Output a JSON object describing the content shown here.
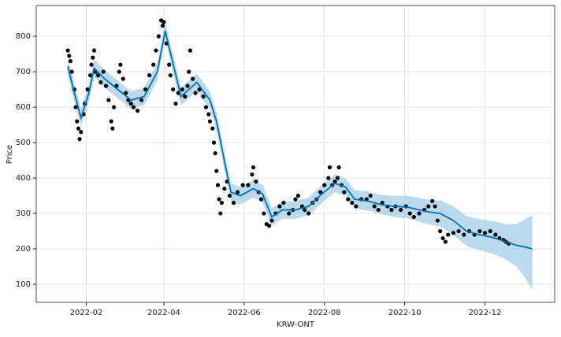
{
  "chart_data": {
    "type": "forecast",
    "xlabel": "KRW-ONT",
    "ylabel": "Price",
    "xlim": [
      -7,
      387
    ],
    "ylim": [
      49,
      887
    ],
    "xticks": [
      {
        "value": 31,
        "label": "2022-02"
      },
      {
        "value": 90,
        "label": "2022-04"
      },
      {
        "value": 151,
        "label": "2022-06"
      },
      {
        "value": 212,
        "label": "2022-08"
      },
      {
        "value": 273,
        "label": "2022-10"
      },
      {
        "value": 334,
        "label": "2022-12"
      }
    ],
    "yticks": [
      100,
      200,
      300,
      400,
      500,
      600,
      700,
      800
    ],
    "grid": true,
    "forecast": {
      "color": "#0072b2",
      "band_color": "#a6cde8",
      "x": [
        17,
        22,
        27,
        33,
        37,
        45,
        55,
        65,
        75,
        85,
        91,
        103,
        115,
        125,
        130,
        137,
        141,
        148,
        158,
        165,
        172,
        180,
        190,
        200,
        210,
        220,
        228,
        235,
        245,
        255,
        265,
        275,
        290,
        300,
        310,
        320,
        330,
        340,
        350,
        358,
        365,
        370
      ],
      "values": [
        715,
        640,
        570,
        640,
        710,
        680,
        650,
        620,
        630,
        700,
        815,
        630,
        670,
        620,
        560,
        430,
        360,
        350,
        370,
        355,
        290,
        310,
        310,
        320,
        355,
        385,
        375,
        340,
        335,
        325,
        320,
        318,
        305,
        300,
        280,
        250,
        240,
        232,
        220,
        210,
        205,
        200
      ],
      "lower": [
        690,
        615,
        545,
        615,
        685,
        655,
        625,
        595,
        605,
        675,
        790,
        605,
        645,
        595,
        535,
        405,
        335,
        325,
        345,
        330,
        265,
        285,
        285,
        295,
        330,
        360,
        350,
        315,
        308,
        298,
        290,
        286,
        270,
        263,
        240,
        208,
        196,
        186,
        170,
        150,
        115,
        85
      ],
      "upper": [
        740,
        665,
        595,
        665,
        735,
        705,
        675,
        645,
        655,
        725,
        840,
        655,
        695,
        645,
        585,
        455,
        385,
        375,
        395,
        380,
        315,
        335,
        335,
        345,
        380,
        410,
        400,
        365,
        362,
        352,
        350,
        350,
        340,
        337,
        320,
        292,
        284,
        278,
        270,
        270,
        285,
        295
      ]
    },
    "observed": {
      "color": "#000000",
      "x": [
        17,
        18,
        19,
        20,
        22,
        23,
        24,
        25,
        26,
        27,
        29,
        30,
        32,
        34,
        35,
        36,
        37,
        38,
        40,
        42,
        44,
        46,
        48,
        50,
        51,
        52,
        54,
        56,
        57,
        59,
        61,
        63,
        65,
        67,
        70,
        73,
        76,
        79,
        82,
        84,
        86,
        88,
        89,
        90,
        92,
        94,
        95,
        97,
        99,
        101,
        104,
        106,
        108,
        109,
        110,
        112,
        114,
        117,
        120,
        122,
        124,
        125,
        127,
        128,
        129,
        130,
        131,
        132,
        133,
        134,
        136,
        138,
        140,
        143,
        146,
        150,
        154,
        157,
        158,
        160,
        162,
        164,
        166,
        168,
        170,
        172,
        175,
        178,
        181,
        185,
        188,
        190,
        192,
        195,
        197,
        200,
        203,
        206,
        209,
        212,
        215,
        216,
        218,
        220,
        222,
        223,
        225,
        227,
        230,
        233,
        236,
        240,
        244,
        247,
        250,
        253,
        256,
        260,
        263,
        266,
        270,
        274,
        277,
        280,
        284,
        288,
        291,
        294,
        296,
        298,
        300,
        302,
        304,
        306,
        310,
        314,
        318,
        322,
        326,
        330,
        334,
        338,
        342,
        345,
        348,
        350,
        352
      ],
      "values": [
        760,
        745,
        730,
        700,
        650,
        600,
        560,
        540,
        510,
        530,
        580,
        610,
        650,
        690,
        720,
        740,
        760,
        700,
        690,
        670,
        700,
        660,
        620,
        560,
        540,
        600,
        660,
        700,
        720,
        680,
        640,
        620,
        610,
        600,
        590,
        620,
        650,
        690,
        720,
        760,
        800,
        845,
        830,
        840,
        780,
        720,
        690,
        650,
        610,
        640,
        650,
        630,
        660,
        700,
        760,
        680,
        640,
        650,
        630,
        600,
        580,
        560,
        540,
        500,
        470,
        420,
        380,
        340,
        300,
        330,
        370,
        390,
        350,
        330,
        360,
        380,
        380,
        410,
        430,
        390,
        360,
        340,
        300,
        270,
        265,
        280,
        300,
        320,
        330,
        300,
        310,
        340,
        350,
        320,
        310,
        300,
        330,
        340,
        360,
        380,
        400,
        430,
        380,
        390,
        400,
        430,
        380,
        360,
        340,
        330,
        320,
        340,
        340,
        350,
        320,
        310,
        330,
        320,
        310,
        320,
        310,
        320,
        300,
        290,
        300,
        310,
        320,
        335,
        320,
        280,
        250,
        230,
        220,
        240,
        245,
        250,
        240,
        250,
        240,
        250,
        245,
        250,
        240,
        230,
        225,
        220,
        215
      ]
    }
  }
}
